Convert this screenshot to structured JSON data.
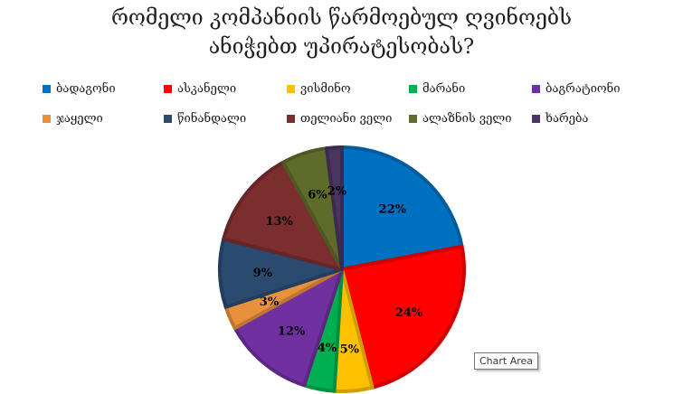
{
  "chart_data": {
    "type": "pie",
    "title_lines": [
      "რომელი კომპანიის წარმოებულ ღვინოებს",
      "ანიჭებთ უპირატესობას?"
    ],
    "slices": [
      {
        "name": "ბადაგონი",
        "value": 22,
        "label": "22%",
        "color": "#0070C0"
      },
      {
        "name": "ასკანელი",
        "value": 24,
        "label": "24%",
        "color": "#FF0000"
      },
      {
        "name": "ვისმინო",
        "value": 5,
        "label": "5%",
        "color": "#FFC000"
      },
      {
        "name": "მარანი",
        "value": 4,
        "label": "4%",
        "color": "#00B050"
      },
      {
        "name": "ბაგრატიონი",
        "value": 12,
        "label": "12%",
        "color": "#7030A0"
      },
      {
        "name": "ჯაყელი",
        "value": 3,
        "label": "3%",
        "color": "#E8903C"
      },
      {
        "name": "წინანდალი",
        "value": 9,
        "label": "9%",
        "color": "#2B4A70"
      },
      {
        "name": "თელიანი ველი",
        "value": 13,
        "label": "13%",
        "color": "#7A2E2E"
      },
      {
        "name": "ალაზნის ველი",
        "value": 6,
        "label": "6%",
        "color": "#5E6B2A"
      },
      {
        "name": "ხარება",
        "value": 2,
        "label": "2%",
        "color": "#4B3460"
      }
    ],
    "legend_position": "top"
  },
  "tooltip": "Chart Area"
}
